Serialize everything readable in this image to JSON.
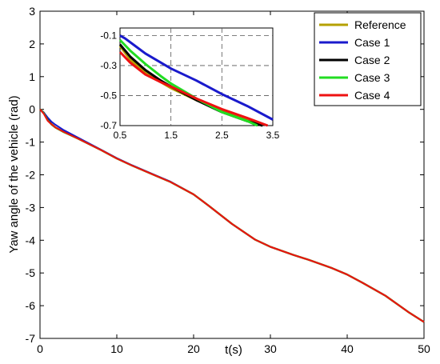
{
  "chart_data": {
    "type": "line",
    "xlabel": "t(s)",
    "ylabel": "Yaw angle of the vehicle (rad)",
    "xlim": [
      0,
      50
    ],
    "ylim": [
      -7,
      3
    ],
    "xticks": [
      "0",
      "10",
      "20",
      "30",
      "40",
      "50"
    ],
    "yticks": [
      "3",
      "2",
      "1",
      "0",
      "-1",
      "-2",
      "-3",
      "-4",
      "-5",
      "-6",
      "-7"
    ],
    "grid": false,
    "legend_position": "top-right",
    "series": [
      {
        "name": "Reference",
        "color": "#b5a000",
        "x": [
          0,
          0.5,
          1,
          1.5,
          2,
          3,
          5,
          8,
          10,
          12,
          15,
          17,
          20,
          22,
          25,
          28,
          30,
          33,
          35,
          38,
          40,
          42,
          45,
          48,
          50
        ],
        "y": [
          0,
          -0.1,
          -0.3,
          -0.45,
          -0.55,
          -0.68,
          -0.9,
          -1.25,
          -1.5,
          -1.72,
          -2.02,
          -2.22,
          -2.6,
          -2.95,
          -3.5,
          -3.98,
          -4.2,
          -4.45,
          -4.6,
          -4.85,
          -5.05,
          -5.3,
          -5.7,
          -6.2,
          -6.5
        ]
      },
      {
        "name": "Case 1",
        "color": "#1a1acc",
        "x": [
          0,
          0.5,
          1,
          1.5,
          2,
          3,
          5,
          8,
          10,
          12,
          15,
          17,
          20,
          22,
          25,
          28,
          30,
          33,
          35,
          38,
          40,
          42,
          45,
          48,
          50
        ],
        "y": [
          0,
          -0.1,
          -0.25,
          -0.38,
          -0.47,
          -0.62,
          -0.87,
          -1.24,
          -1.49,
          -1.71,
          -2.01,
          -2.21,
          -2.6,
          -2.95,
          -3.5,
          -3.98,
          -4.2,
          -4.45,
          -4.6,
          -4.85,
          -5.05,
          -5.3,
          -5.7,
          -6.2,
          -6.5
        ]
      },
      {
        "name": "Case 2",
        "color": "#000000",
        "x": [
          0,
          0.5,
          1,
          1.5,
          2,
          3,
          5,
          8,
          10,
          12,
          15,
          17,
          20,
          22,
          25,
          28,
          30,
          33,
          35,
          38,
          40,
          42,
          45,
          48,
          50
        ],
        "y": [
          0,
          -0.12,
          -0.32,
          -0.46,
          -0.55,
          -0.68,
          -0.9,
          -1.25,
          -1.5,
          -1.72,
          -2.02,
          -2.22,
          -2.6,
          -2.95,
          -3.5,
          -3.98,
          -4.2,
          -4.45,
          -4.6,
          -4.85,
          -5.05,
          -5.3,
          -5.7,
          -6.2,
          -6.5
        ]
      },
      {
        "name": "Case 3",
        "color": "#22dd22",
        "x": [
          0,
          0.5,
          1,
          1.5,
          2,
          3,
          5,
          8,
          10,
          12,
          15,
          17,
          20,
          22,
          25,
          28,
          30,
          33,
          35,
          38,
          40,
          42,
          45,
          48,
          50
        ],
        "y": [
          0,
          -0.12,
          -0.33,
          -0.47,
          -0.56,
          -0.69,
          -0.9,
          -1.25,
          -1.5,
          -1.72,
          -2.02,
          -2.22,
          -2.6,
          -2.95,
          -3.5,
          -3.98,
          -4.2,
          -4.45,
          -4.6,
          -4.85,
          -5.05,
          -5.3,
          -5.7,
          -6.2,
          -6.5
        ]
      },
      {
        "name": "Case 4",
        "color": "#ee1111",
        "x": [
          0,
          0.5,
          1,
          1.5,
          2,
          3,
          5,
          8,
          10,
          12,
          15,
          17,
          20,
          22,
          25,
          28,
          30,
          33,
          35,
          38,
          40,
          42,
          45,
          48,
          50
        ],
        "y": [
          0,
          -0.14,
          -0.35,
          -0.46,
          -0.55,
          -0.68,
          -0.9,
          -1.25,
          -1.5,
          -1.72,
          -2.02,
          -2.22,
          -2.6,
          -2.95,
          -3.5,
          -3.98,
          -4.2,
          -4.45,
          -4.6,
          -4.85,
          -5.05,
          -5.3,
          -5.7,
          -6.2,
          -6.5
        ]
      }
    ],
    "inset": {
      "xlim": [
        0.5,
        3.5
      ],
      "ylim": [
        -0.7,
        -0.05
      ],
      "xticks": [
        "0.5",
        "1.5",
        "2.5",
        "3.5"
      ],
      "yticks": [
        "-0.1",
        "-0.3",
        "-0.5",
        "-0.7"
      ],
      "grid": "dashed",
      "series": [
        {
          "name": "Reference",
          "color": "#b5a000",
          "x": [
            0.5,
            0.7,
            1,
            1.3,
            1.5,
            2,
            2.5,
            3,
            3.3
          ],
          "y": [
            -0.17,
            -0.26,
            -0.35,
            -0.41,
            -0.45,
            -0.53,
            -0.6,
            -0.66,
            -0.7
          ]
        },
        {
          "name": "Case 1",
          "color": "#1a1acc",
          "x": [
            0.5,
            0.6,
            0.8,
            1,
            1.5,
            2,
            2.5,
            3,
            3.5
          ],
          "y": [
            -0.1,
            -0.12,
            -0.17,
            -0.22,
            -0.32,
            -0.4,
            -0.49,
            -0.57,
            -0.66
          ]
        },
        {
          "name": "Case 2",
          "color": "#000000",
          "x": [
            0.5,
            0.7,
            1,
            1.3,
            1.5,
            2,
            2.5,
            3,
            3.3
          ],
          "y": [
            -0.16,
            -0.24,
            -0.33,
            -0.4,
            -0.44,
            -0.53,
            -0.61,
            -0.67,
            -0.7
          ]
        },
        {
          "name": "Case 3",
          "color": "#22dd22",
          "x": [
            0.5,
            0.7,
            1,
            1.3,
            1.5,
            2,
            2.5,
            3,
            3.2
          ],
          "y": [
            -0.13,
            -0.2,
            -0.29,
            -0.37,
            -0.42,
            -0.52,
            -0.61,
            -0.67,
            -0.7
          ]
        },
        {
          "name": "Case 4",
          "color": "#ee1111",
          "x": [
            0.5,
            0.7,
            1,
            1.3,
            1.5,
            2,
            2.5,
            3,
            3.4
          ],
          "y": [
            -0.21,
            -0.28,
            -0.36,
            -0.41,
            -0.44,
            -0.52,
            -0.59,
            -0.65,
            -0.7
          ]
        }
      ]
    }
  }
}
